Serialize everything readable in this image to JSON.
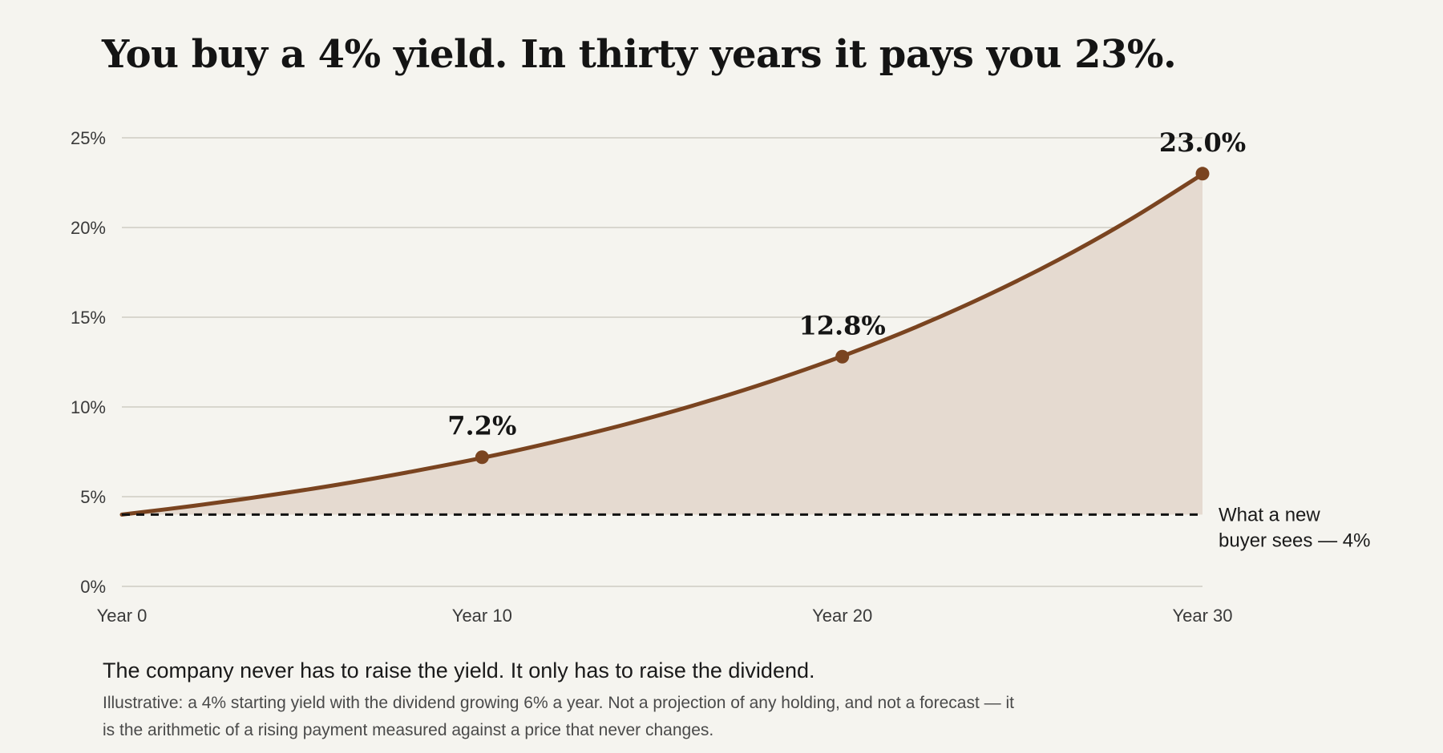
{
  "title": "You buy a 4% yield. In thirty years it pays you 23%.",
  "caption": "The company never has to raise the yield. It only has to raise the dividend.",
  "note": "Illustrative: a 4% starting yield with the dividend growing 6% a year. Not a projection of any holding, and not a forecast — it is the arithmetic of a rising payment measured against a price that never changes.",
  "colors": {
    "background": "#f5f4ef",
    "line": "#7a4420",
    "area": "#e5dad0",
    "grid": "#cfcbc3",
    "reference": "#111111"
  },
  "chart_data": {
    "type": "area",
    "title": "You buy a 4% yield. In thirty years it pays you 23%.",
    "xlabel": "",
    "ylabel": "",
    "series": [
      {
        "x": [
          0,
          2,
          4,
          6,
          8,
          10,
          12,
          14,
          16,
          18,
          20,
          22,
          24,
          26,
          28,
          30
        ],
        "values": [
          4.0,
          4.49,
          5.05,
          5.67,
          6.38,
          7.16,
          8.05,
          9.04,
          10.16,
          11.42,
          12.83,
          14.41,
          16.2,
          18.2,
          20.45,
          22.97
        ]
      }
    ],
    "xlim": [
      0,
      30
    ],
    "ylim": [
      0,
      25
    ],
    "x_ticks": [
      {
        "value": 0,
        "label": "Year 0"
      },
      {
        "value": 10,
        "label": "Year 10"
      },
      {
        "value": 20,
        "label": "Year 20"
      },
      {
        "value": 30,
        "label": "Year 30"
      }
    ],
    "y_ticks": [
      {
        "value": 0,
        "label": "0%"
      },
      {
        "value": 5,
        "label": "5%"
      },
      {
        "value": 10,
        "label": "10%"
      },
      {
        "value": 15,
        "label": "15%"
      },
      {
        "value": 20,
        "label": "20%"
      },
      {
        "value": 25,
        "label": "25%"
      }
    ],
    "markers": [
      {
        "x": 10,
        "y": 7.2,
        "label": "7.2%"
      },
      {
        "x": 20,
        "y": 12.8,
        "label": "12.8%"
      },
      {
        "x": 30,
        "y": 23.0,
        "label": "23.0%"
      }
    ],
    "reference_line": {
      "y": 4,
      "style": "dashed",
      "label_lines": [
        "What a new",
        "buyer sees — 4%"
      ]
    },
    "grid": true,
    "legend": "none"
  }
}
